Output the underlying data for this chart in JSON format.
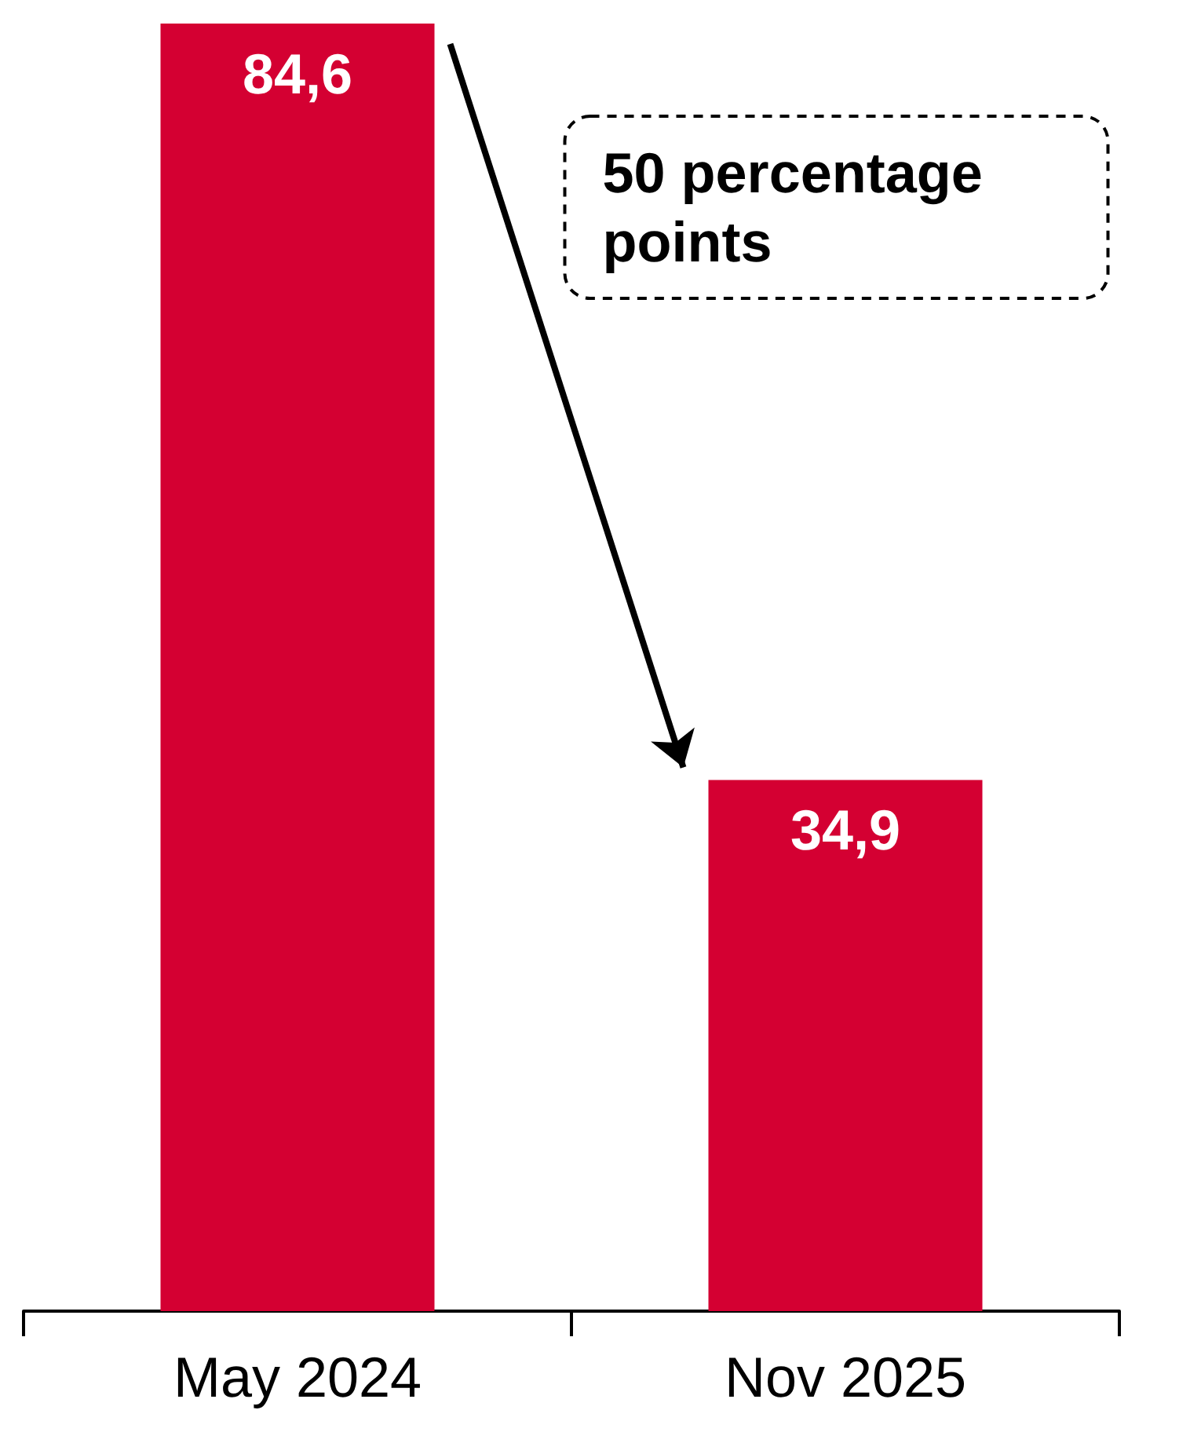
{
  "chart_data": {
    "type": "bar",
    "categories": [
      "May 2024",
      "Nov 2025"
    ],
    "values": [
      84.6,
      34.9
    ],
    "value_labels": [
      "84,6",
      "34,9"
    ],
    "color": "#d40032",
    "annotations": [
      "50 percentage points"
    ]
  }
}
